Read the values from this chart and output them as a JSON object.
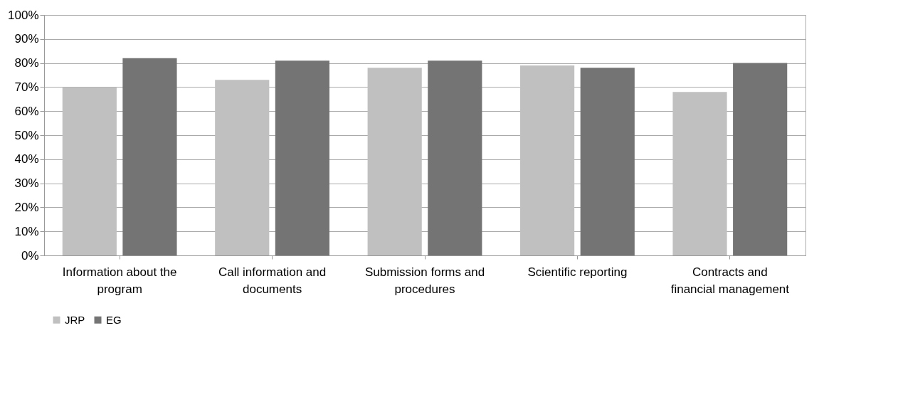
{
  "chart_data": {
    "type": "bar",
    "categories": [
      "Information about the program",
      "Call information and documents",
      "Submission forms and procedures",
      "Scientific reporting",
      "Contracts and financial management"
    ],
    "series": [
      {
        "name": "JRP",
        "color": "#c0c0c0",
        "values": [
          70,
          73,
          78,
          79,
          68
        ]
      },
      {
        "name": "EG",
        "color": "#747474",
        "values": [
          82,
          81,
          81,
          78,
          80
        ]
      }
    ],
    "ylim": [
      0,
      100
    ],
    "yticks": [
      {
        "value": 0,
        "label": "0%"
      },
      {
        "value": 10,
        "label": "10%"
      },
      {
        "value": 20,
        "label": "20%"
      },
      {
        "value": 30,
        "label": "30%"
      },
      {
        "value": 40,
        "label": "40%"
      },
      {
        "value": 50,
        "label": "50%"
      },
      {
        "value": 60,
        "label": "60%"
      },
      {
        "value": 70,
        "label": "70%"
      },
      {
        "value": 80,
        "label": "80%"
      },
      {
        "value": 90,
        "label": "90%"
      },
      {
        "value": 100,
        "label": "100%"
      }
    ],
    "grid": "y",
    "legend": "bottom"
  }
}
